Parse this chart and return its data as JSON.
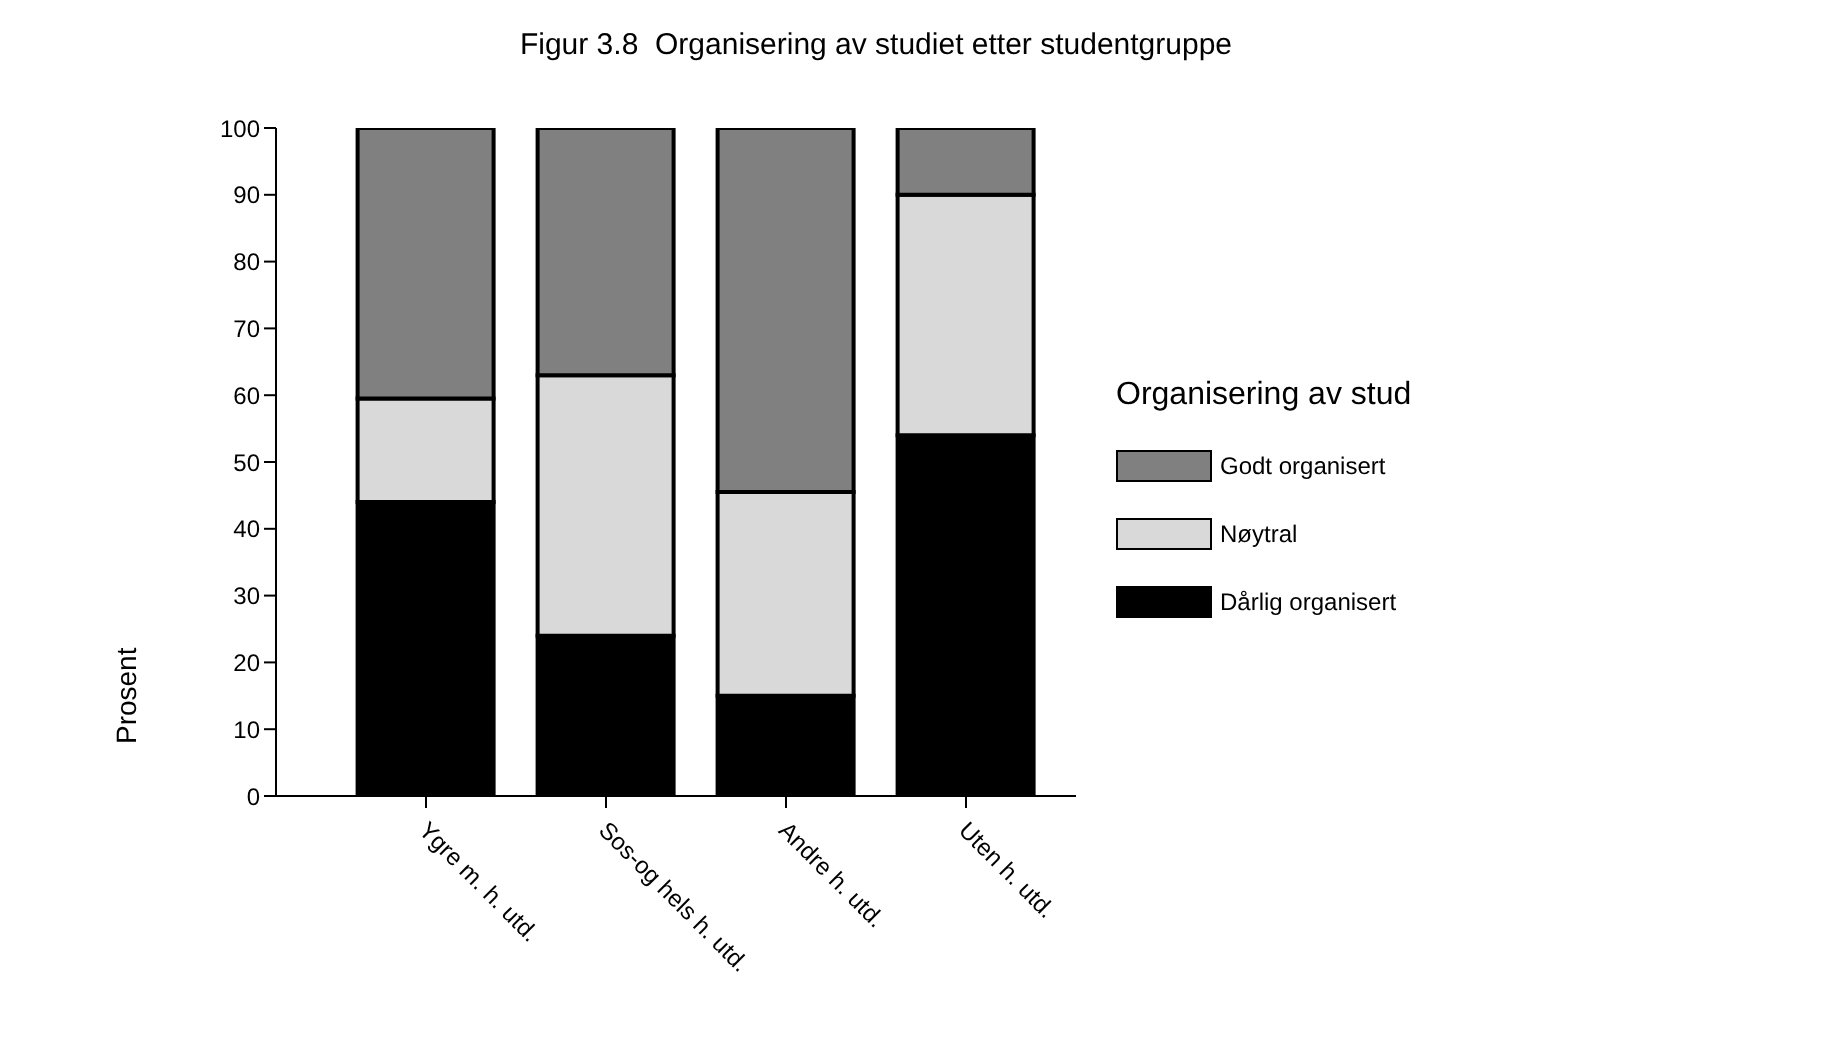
{
  "chart_data": {
    "type": "bar",
    "title": "Figur 3.8  Organisering av studiet etter studentgruppe",
    "ylabel": "Prosent",
    "legend_title": "Organisering av stud",
    "categories": [
      "Ygre m. h. utd.",
      "Sos-og hels h. utd.",
      "Andre h. utd.",
      "Uten h. utd."
    ],
    "series": [
      {
        "name": "Dårlig organisert",
        "color": "#000000",
        "values": [
          44,
          24,
          15,
          54
        ]
      },
      {
        "name": "Nøytral",
        "color": "#d9d9d9",
        "values": [
          15.5,
          39,
          30.5,
          36
        ]
      },
      {
        "name": "Godt organisert",
        "color": "#808080",
        "values": [
          40.5,
          37,
          54.5,
          10
        ]
      }
    ],
    "stacked": true,
    "ylim": [
      0,
      100
    ],
    "yticks": [
      0,
      10,
      20,
      30,
      40,
      50,
      60,
      70,
      80,
      90,
      100
    ],
    "grid": false,
    "legend": "right"
  }
}
